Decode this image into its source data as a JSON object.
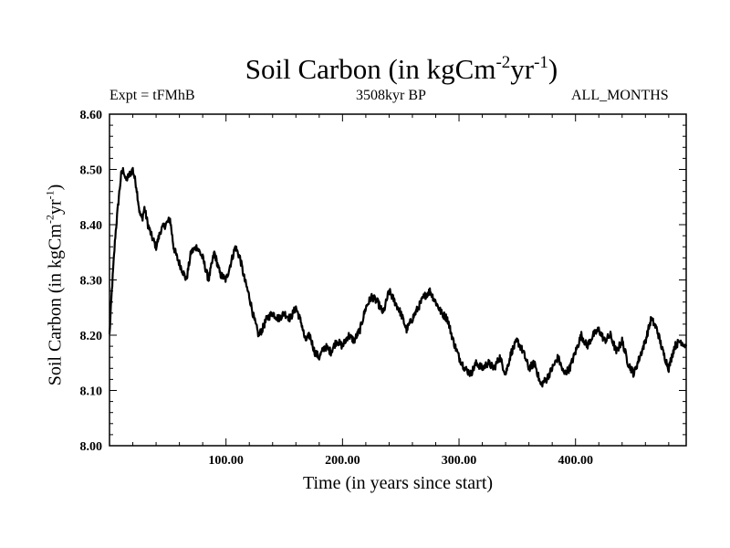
{
  "chart_data": {
    "type": "line",
    "title": "Soil Carbon (in kgCm",
    "title_sup1": "-2",
    "title_mid": "yr",
    "title_sup2": "-1",
    "title_end": ")",
    "subtitle_left": "Expt = tFMhB",
    "subtitle_center": "3508kyr BP",
    "subtitle_right": "ALL_MONTHS",
    "ylabel": "Soil Carbon (in kgCm",
    "ylabel_sup1": "-2",
    "ylabel_mid": "yr",
    "ylabel_sup2": "-1",
    "ylabel_end": ")",
    "xlabel": "Time (in years since start)",
    "xlim": [
      0,
      495
    ],
    "ylim": [
      8.0,
      8.6
    ],
    "xticks": [
      100,
      200,
      300,
      400
    ],
    "xtick_labels": [
      "100.00",
      "200.00",
      "300.00",
      "400.00"
    ],
    "yticks": [
      8.0,
      8.1,
      8.2,
      8.3,
      8.4,
      8.5,
      8.6
    ],
    "ytick_labels": [
      "8.00",
      "8.10",
      "8.20",
      "8.30",
      "8.40",
      "8.50",
      "8.60"
    ],
    "series": [
      {
        "name": "Soil Carbon",
        "color": "#000000",
        "x": [
          0,
          2,
          5,
          8,
          10,
          12,
          14,
          17,
          20,
          23,
          26,
          28,
          30,
          33,
          36,
          40,
          44,
          48,
          52,
          55,
          58,
          62,
          66,
          70,
          75,
          80,
          85,
          90,
          95,
          100,
          104,
          108,
          112,
          116,
          120,
          124,
          128,
          131,
          135,
          140,
          145,
          150,
          155,
          160,
          165,
          168,
          172,
          176,
          180,
          185,
          190,
          195,
          200,
          205,
          210,
          215,
          220,
          225,
          230,
          235,
          240,
          245,
          250,
          255,
          260,
          265,
          270,
          275,
          280,
          285,
          290,
          295,
          300,
          305,
          310,
          315,
          320,
          325,
          330,
          335,
          340,
          345,
          350,
          355,
          360,
          365,
          370,
          375,
          380,
          385,
          390,
          395,
          400,
          405,
          410,
          415,
          420,
          425,
          430,
          435,
          440,
          445,
          450,
          455,
          460,
          465,
          470,
          475,
          480,
          485,
          490,
          495
        ],
        "values": [
          8.2,
          8.28,
          8.38,
          8.45,
          8.49,
          8.5,
          8.48,
          8.49,
          8.5,
          8.47,
          8.42,
          8.41,
          8.43,
          8.4,
          8.38,
          8.36,
          8.39,
          8.4,
          8.41,
          8.36,
          8.34,
          8.32,
          8.3,
          8.35,
          8.36,
          8.34,
          8.3,
          8.35,
          8.31,
          8.3,
          8.33,
          8.36,
          8.34,
          8.3,
          8.27,
          8.23,
          8.2,
          8.21,
          8.23,
          8.24,
          8.23,
          8.24,
          8.23,
          8.25,
          8.22,
          8.19,
          8.2,
          8.17,
          8.16,
          8.18,
          8.17,
          8.19,
          8.18,
          8.2,
          8.19,
          8.21,
          8.25,
          8.27,
          8.26,
          8.24,
          8.28,
          8.26,
          8.24,
          8.21,
          8.23,
          8.25,
          8.27,
          8.28,
          8.26,
          8.24,
          8.23,
          8.19,
          8.16,
          8.14,
          8.13,
          8.15,
          8.14,
          8.15,
          8.14,
          8.16,
          8.13,
          8.17,
          8.19,
          8.17,
          8.14,
          8.15,
          8.11,
          8.12,
          8.14,
          8.16,
          8.13,
          8.14,
          8.17,
          8.2,
          8.18,
          8.2,
          8.21,
          8.19,
          8.2,
          8.17,
          8.19,
          8.15,
          8.13,
          8.16,
          8.19,
          8.23,
          8.21,
          8.17,
          8.14,
          8.18,
          8.19,
          8.18
        ]
      }
    ]
  }
}
